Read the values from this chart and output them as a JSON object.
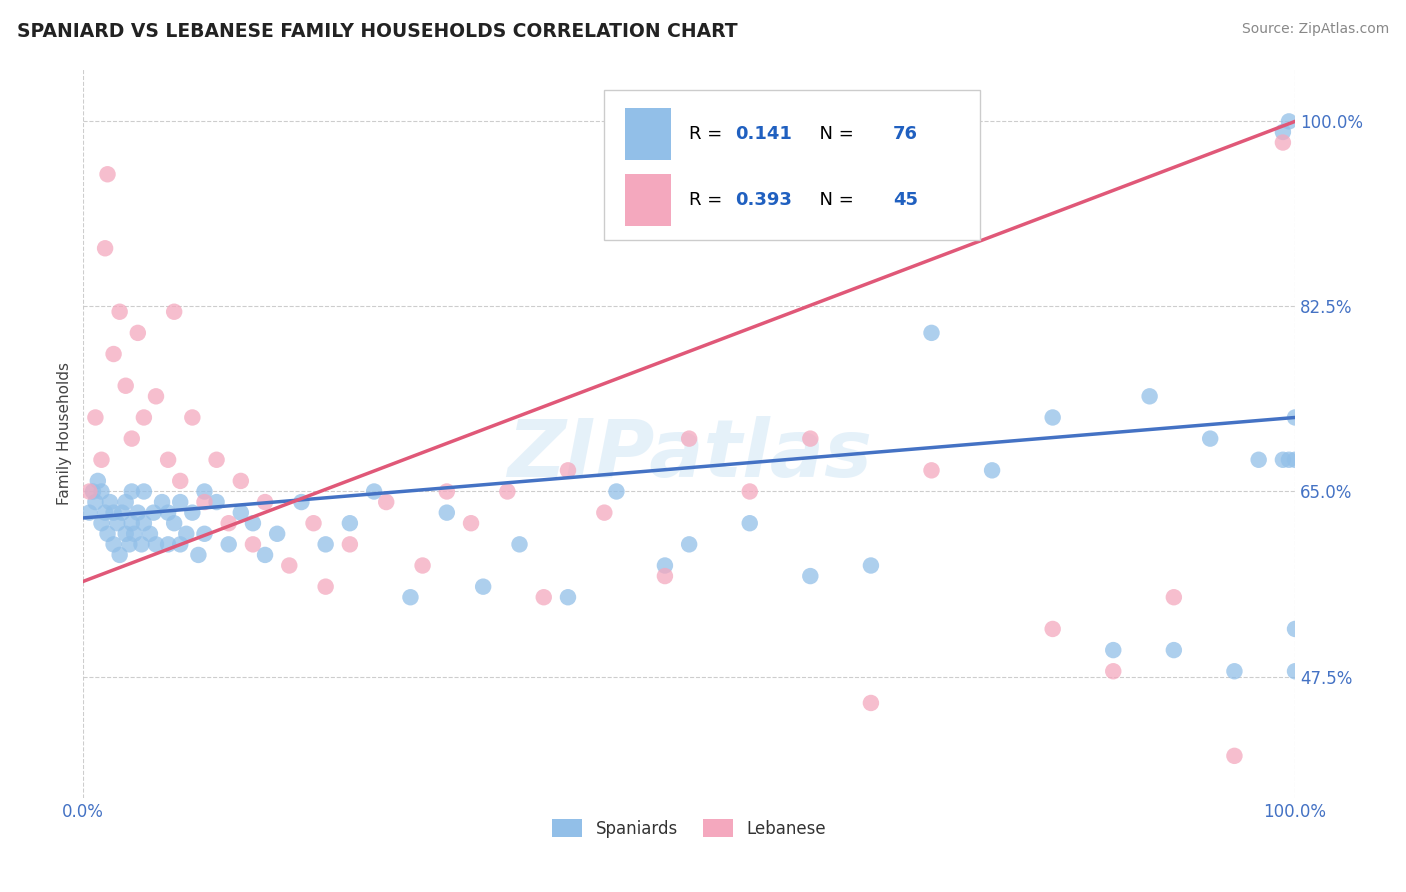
{
  "title": "SPANIARD VS LEBANESE FAMILY HOUSEHOLDS CORRELATION CHART",
  "source": "Source: ZipAtlas.com",
  "ylabel": "Family Households",
  "ytick_labels": [
    "47.5%",
    "65.0%",
    "82.5%",
    "100.0%"
  ],
  "ytick_values": [
    0.475,
    0.65,
    0.825,
    1.0
  ],
  "xrange": [
    0.0,
    1.0
  ],
  "yrange": [
    0.36,
    1.05
  ],
  "legend_r_blue": "0.141",
  "legend_n_blue": "76",
  "legend_r_pink": "0.393",
  "legend_n_pink": "45",
  "legend_label_blue": "Spaniards",
  "legend_label_pink": "Lebanese",
  "blue_color": "#92bfe8",
  "pink_color": "#f4a8be",
  "trendline_blue": "#4472c4",
  "trendline_pink": "#e05878",
  "watermark": "ZIPatlas",
  "blue_trendline_x0": 0.0,
  "blue_trendline_y0": 0.625,
  "blue_trendline_x1": 1.0,
  "blue_trendline_y1": 0.72,
  "pink_trendline_x0": 0.0,
  "pink_trendline_y0": 0.565,
  "pink_trendline_x1": 1.0,
  "pink_trendline_y1": 1.0,
  "blue_scatter_x": [
    0.005,
    0.008,
    0.01,
    0.012,
    0.015,
    0.015,
    0.018,
    0.02,
    0.022,
    0.025,
    0.025,
    0.028,
    0.03,
    0.032,
    0.035,
    0.035,
    0.038,
    0.04,
    0.04,
    0.042,
    0.045,
    0.048,
    0.05,
    0.05,
    0.055,
    0.058,
    0.06,
    0.065,
    0.07,
    0.07,
    0.075,
    0.08,
    0.08,
    0.085,
    0.09,
    0.095,
    0.1,
    0.1,
    0.11,
    0.12,
    0.13,
    0.14,
    0.15,
    0.16,
    0.18,
    0.2,
    0.22,
    0.24,
    0.27,
    0.3,
    0.33,
    0.36,
    0.4,
    0.44,
    0.48,
    0.5,
    0.55,
    0.6,
    0.65,
    0.7,
    0.75,
    0.8,
    0.85,
    0.88,
    0.9,
    0.93,
    0.95,
    0.97,
    0.99,
    0.99,
    0.995,
    0.995,
    1.0,
    1.0,
    1.0,
    1.0
  ],
  "blue_scatter_y": [
    0.63,
    0.65,
    0.64,
    0.66,
    0.62,
    0.65,
    0.63,
    0.61,
    0.64,
    0.6,
    0.63,
    0.62,
    0.59,
    0.63,
    0.61,
    0.64,
    0.6,
    0.62,
    0.65,
    0.61,
    0.63,
    0.6,
    0.62,
    0.65,
    0.61,
    0.63,
    0.6,
    0.64,
    0.6,
    0.63,
    0.62,
    0.6,
    0.64,
    0.61,
    0.63,
    0.59,
    0.61,
    0.65,
    0.64,
    0.6,
    0.63,
    0.62,
    0.59,
    0.61,
    0.64,
    0.6,
    0.62,
    0.65,
    0.55,
    0.63,
    0.56,
    0.6,
    0.55,
    0.65,
    0.58,
    0.6,
    0.62,
    0.57,
    0.58,
    0.8,
    0.67,
    0.72,
    0.5,
    0.74,
    0.5,
    0.7,
    0.48,
    0.68,
    0.68,
    0.99,
    0.68,
    1.0,
    0.72,
    0.68,
    0.48,
    0.52
  ],
  "pink_scatter_x": [
    0.005,
    0.01,
    0.015,
    0.018,
    0.02,
    0.025,
    0.03,
    0.035,
    0.04,
    0.045,
    0.05,
    0.06,
    0.07,
    0.075,
    0.08,
    0.09,
    0.1,
    0.11,
    0.12,
    0.13,
    0.14,
    0.15,
    0.17,
    0.19,
    0.2,
    0.22,
    0.25,
    0.28,
    0.3,
    0.32,
    0.35,
    0.38,
    0.4,
    0.43,
    0.48,
    0.5,
    0.55,
    0.6,
    0.65,
    0.7,
    0.8,
    0.85,
    0.9,
    0.95,
    0.99
  ],
  "pink_scatter_y": [
    0.65,
    0.72,
    0.68,
    0.88,
    0.95,
    0.78,
    0.82,
    0.75,
    0.7,
    0.8,
    0.72,
    0.74,
    0.68,
    0.82,
    0.66,
    0.72,
    0.64,
    0.68,
    0.62,
    0.66,
    0.6,
    0.64,
    0.58,
    0.62,
    0.56,
    0.6,
    0.64,
    0.58,
    0.65,
    0.62,
    0.65,
    0.55,
    0.67,
    0.63,
    0.57,
    0.7,
    0.65,
    0.7,
    0.45,
    0.67,
    0.52,
    0.48,
    0.55,
    0.4,
    0.98
  ]
}
